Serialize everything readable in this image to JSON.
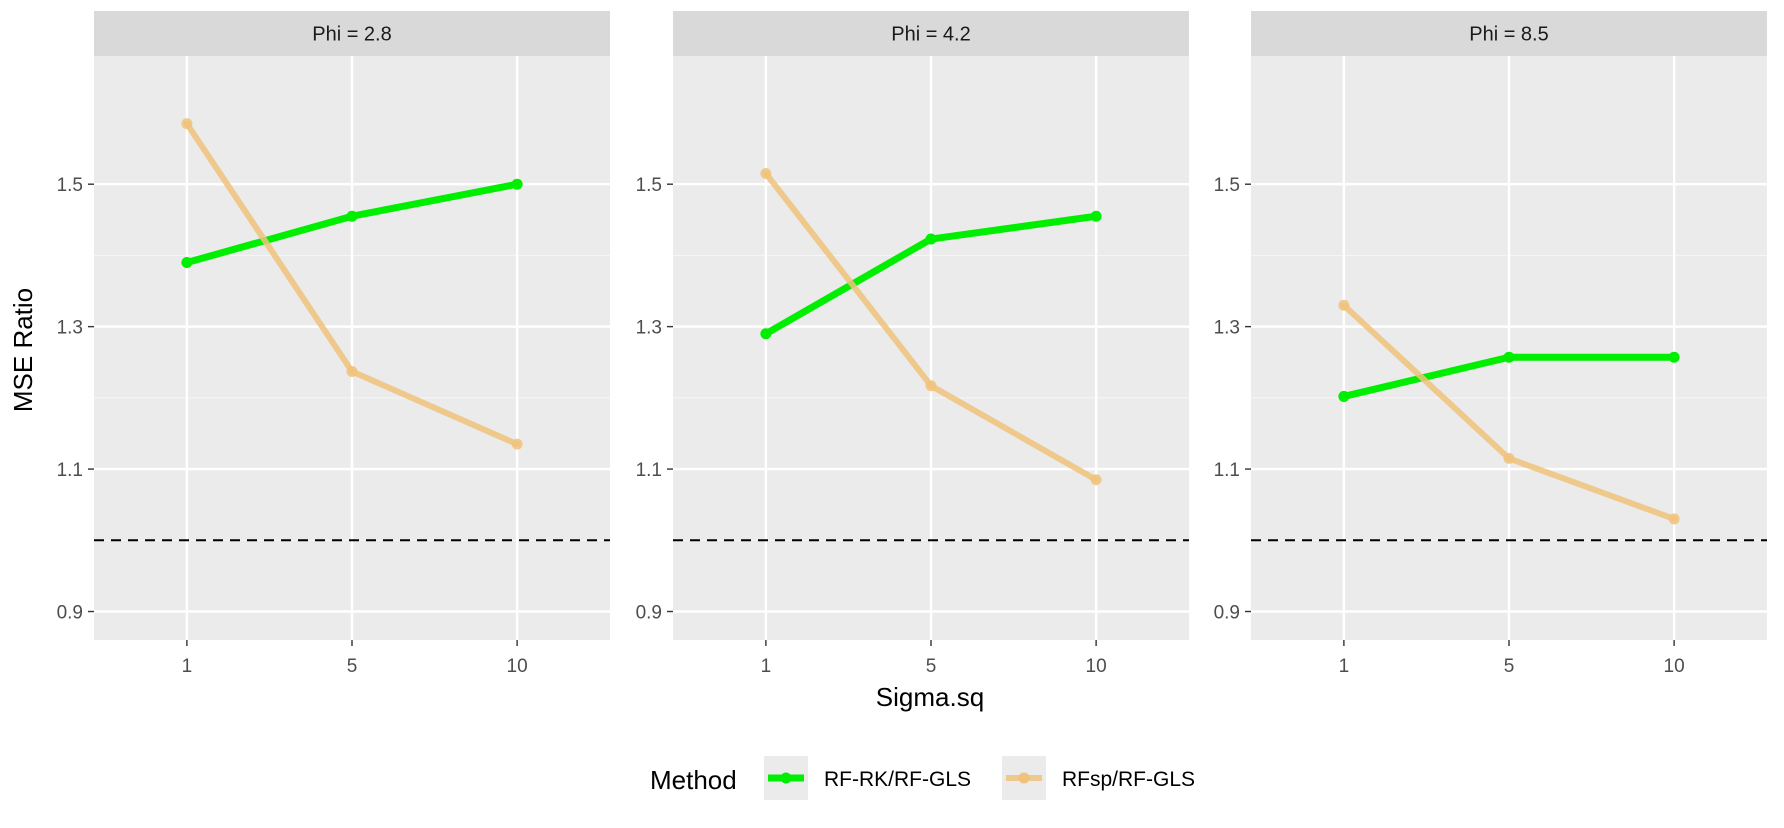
{
  "chart_data": {
    "type": "line",
    "xlabel": "Sigma.sq",
    "ylabel": "MSE Ratio",
    "x": [
      1,
      5,
      10
    ],
    "x_tick_labels": [
      "1",
      "5",
      "10"
    ],
    "y_ticks": [
      0.9,
      1.1,
      1.3,
      1.5
    ],
    "y_tick_labels": [
      "0.9",
      "1.1",
      "1.3",
      "1.5"
    ],
    "ylim": [
      0.86,
      1.68
    ],
    "reference_line": {
      "y": 1.0,
      "style": "dashed",
      "color": "#000000"
    },
    "legend": {
      "title": "Method",
      "position": "bottom"
    },
    "grid": true,
    "panels": [
      {
        "label": "Phi = 2.8",
        "series": [
          {
            "name": "RF-RK/RF-GLS",
            "color": "#00ee00",
            "values": [
              1.39,
              1.455,
              1.5
            ]
          },
          {
            "name": "RFsp/RF-GLS",
            "color": "#f0c27b",
            "values": [
              1.585,
              1.237,
              1.135
            ]
          }
        ]
      },
      {
        "label": "Phi = 4.2",
        "series": [
          {
            "name": "RF-RK/RF-GLS",
            "color": "#00ee00",
            "values": [
              1.29,
              1.423,
              1.455
            ]
          },
          {
            "name": "RFsp/RF-GLS",
            "color": "#f0c27b",
            "values": [
              1.515,
              1.217,
              1.085
            ]
          }
        ]
      },
      {
        "label": "Phi = 8.5",
        "series": [
          {
            "name": "RF-RK/RF-GLS",
            "color": "#00ee00",
            "values": [
              1.202,
              1.257,
              1.257
            ]
          },
          {
            "name": "RFsp/RF-GLS",
            "color": "#f0c27b",
            "values": [
              1.33,
              1.115,
              1.03
            ]
          }
        ]
      }
    ]
  }
}
